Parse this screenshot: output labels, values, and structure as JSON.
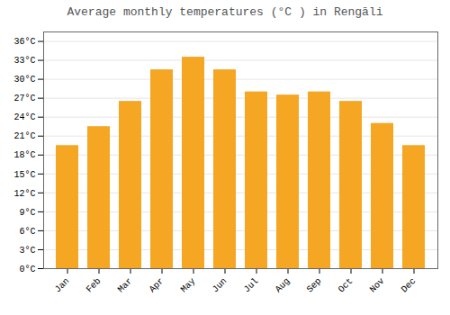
{
  "chart_data": {
    "type": "bar",
    "title": "Average monthly temperatures (°C ) in Rengāli",
    "categories": [
      "Jan",
      "Feb",
      "Mar",
      "Apr",
      "May",
      "Jun",
      "Jul",
      "Aug",
      "Sep",
      "Oct",
      "Nov",
      "Dec"
    ],
    "values": [
      19.5,
      22.5,
      26.5,
      31.5,
      33.5,
      31.5,
      28.0,
      27.5,
      28.0,
      26.5,
      23.0,
      19.5
    ],
    "color": "#F5A623",
    "ylim": [
      0,
      37.5
    ],
    "yticks": [
      {
        "value": 0,
        "label": "0°C"
      },
      {
        "value": 3,
        "label": "3°C"
      },
      {
        "value": 6,
        "label": "6°C"
      },
      {
        "value": 9,
        "label": "9°C"
      },
      {
        "value": 12,
        "label": "12°C"
      },
      {
        "value": 15,
        "label": "15°C"
      },
      {
        "value": 18,
        "label": "18°C"
      },
      {
        "value": 21,
        "label": "21°C"
      },
      {
        "value": 24,
        "label": "24°C"
      },
      {
        "value": 27,
        "label": "27°C"
      },
      {
        "value": 30,
        "label": "30°C"
      },
      {
        "value": 33,
        "label": "33°C"
      },
      {
        "value": 36,
        "label": "36°C"
      }
    ],
    "grid": true
  }
}
